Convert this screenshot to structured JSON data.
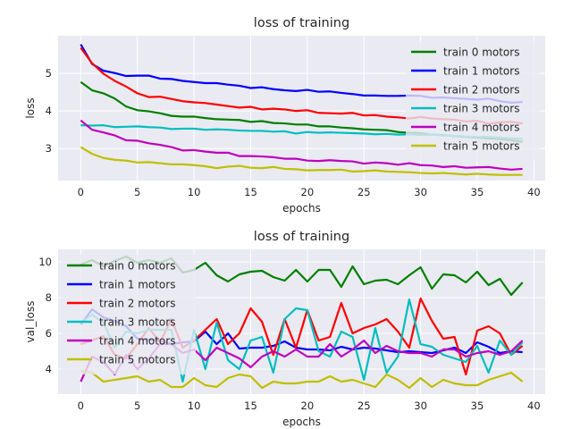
{
  "colors": {
    "panel_bg": "#eaeaf2",
    "grid": "#ffffff",
    "text": "#262626",
    "series": [
      "#008000",
      "#0000ff",
      "#ff0000",
      "#00bfbf",
      "#bf00bf",
      "#bfbf00"
    ]
  },
  "chart_data": [
    {
      "type": "line",
      "title": "loss of training",
      "xlabel": "epochs",
      "ylabel": "loss",
      "xlim": [
        -2,
        41
      ],
      "ylim": [
        2.15,
        6.0
      ],
      "xticks": [
        0,
        5,
        10,
        15,
        20,
        25,
        30,
        35,
        40
      ],
      "yticks": [
        3,
        4,
        5
      ],
      "grid": true,
      "legend_position": "upper right",
      "x": [
        0,
        1,
        2,
        3,
        4,
        5,
        6,
        7,
        8,
        9,
        10,
        11,
        12,
        13,
        14,
        15,
        16,
        17,
        18,
        19,
        20,
        21,
        22,
        23,
        24,
        25,
        26,
        27,
        28,
        29,
        30,
        31,
        32,
        33,
        34,
        35,
        36,
        37,
        38,
        39
      ],
      "series": [
        {
          "name": "train 0 motors",
          "values": [
            4.77,
            4.55,
            4.47,
            4.33,
            4.12,
            4.02,
            3.99,
            3.94,
            3.87,
            3.85,
            3.85,
            3.81,
            3.78,
            3.77,
            3.76,
            3.71,
            3.73,
            3.68,
            3.67,
            3.64,
            3.64,
            3.59,
            3.59,
            3.56,
            3.54,
            3.51,
            3.5,
            3.49,
            3.44,
            3.42,
            3.41,
            3.37,
            3.36,
            3.33,
            3.31,
            3.29,
            3.27,
            3.25,
            3.22,
            3.18
          ]
        },
        {
          "name": "train 1 motors",
          "values": [
            5.77,
            5.25,
            5.07,
            5.01,
            4.93,
            4.94,
            4.94,
            4.86,
            4.85,
            4.8,
            4.77,
            4.74,
            4.74,
            4.7,
            4.67,
            4.61,
            4.63,
            4.58,
            4.55,
            4.53,
            4.56,
            4.51,
            4.52,
            4.48,
            4.45,
            4.41,
            4.41,
            4.4,
            4.4,
            4.41,
            4.4,
            4.35,
            4.36,
            4.34,
            4.32,
            4.3,
            4.33,
            4.26,
            4.22,
            4.24
          ]
        },
        {
          "name": "train 2 motors",
          "values": [
            5.68,
            5.27,
            4.99,
            4.8,
            4.65,
            4.47,
            4.37,
            4.38,
            4.32,
            4.26,
            4.23,
            4.21,
            4.17,
            4.13,
            4.09,
            4.11,
            4.04,
            4.06,
            4.04,
            4.0,
            4.02,
            3.95,
            3.94,
            3.93,
            3.95,
            3.88,
            3.89,
            3.85,
            3.83,
            3.8,
            3.84,
            3.8,
            3.78,
            3.77,
            3.72,
            3.74,
            3.66,
            3.7,
            3.71,
            3.67
          ]
        },
        {
          "name": "train 3 motors",
          "values": [
            3.62,
            3.61,
            3.62,
            3.57,
            3.58,
            3.59,
            3.57,
            3.56,
            3.52,
            3.53,
            3.53,
            3.5,
            3.51,
            3.5,
            3.48,
            3.47,
            3.47,
            3.45,
            3.46,
            3.4,
            3.44,
            3.42,
            3.43,
            3.42,
            3.41,
            3.4,
            3.38,
            3.39,
            3.37,
            3.38,
            3.36,
            3.37,
            3.35,
            3.34,
            3.32,
            3.31,
            3.31,
            3.29,
            3.27,
            3.26
          ]
        },
        {
          "name": "train 4 motors",
          "values": [
            3.75,
            3.5,
            3.43,
            3.35,
            3.22,
            3.21,
            3.14,
            3.1,
            3.04,
            2.95,
            2.96,
            2.92,
            2.89,
            2.89,
            2.8,
            2.8,
            2.79,
            2.77,
            2.73,
            2.73,
            2.68,
            2.67,
            2.69,
            2.67,
            2.66,
            2.6,
            2.63,
            2.61,
            2.57,
            2.61,
            2.56,
            2.55,
            2.51,
            2.53,
            2.49,
            2.5,
            2.51,
            2.47,
            2.44,
            2.46
          ]
        },
        {
          "name": "train 5 motors",
          "values": [
            3.04,
            2.86,
            2.75,
            2.7,
            2.68,
            2.63,
            2.64,
            2.61,
            2.58,
            2.58,
            2.56,
            2.53,
            2.48,
            2.52,
            2.54,
            2.49,
            2.48,
            2.51,
            2.46,
            2.45,
            2.42,
            2.43,
            2.43,
            2.44,
            2.39,
            2.4,
            2.42,
            2.39,
            2.38,
            2.37,
            2.35,
            2.34,
            2.35,
            2.33,
            2.31,
            2.33,
            2.31,
            2.3,
            2.3,
            2.3
          ]
        }
      ]
    },
    {
      "type": "line",
      "title": "loss of training",
      "xlabel": "epochs",
      "ylabel": "val_loss",
      "xlim": [
        -2,
        41
      ],
      "ylim": [
        2.6,
        10.7
      ],
      "xticks": [
        0,
        5,
        10,
        15,
        20,
        25,
        30,
        35,
        40
      ],
      "yticks": [
        4,
        6,
        8,
        10
      ],
      "grid": true,
      "legend_position": "upper left",
      "x": [
        0,
        1,
        2,
        3,
        4,
        5,
        6,
        7,
        8,
        9,
        10,
        11,
        12,
        13,
        14,
        15,
        16,
        17,
        18,
        19,
        20,
        21,
        22,
        23,
        24,
        25,
        26,
        27,
        28,
        29,
        30,
        31,
        32,
        33,
        34,
        35,
        36,
        37,
        38,
        39
      ],
      "series": [
        {
          "name": "train 0 motors",
          "values": [
            9.85,
            10.1,
            9.75,
            10.05,
            10.3,
            9.95,
            10.1,
            9.95,
            10.2,
            9.4,
            9.55,
            9.95,
            9.25,
            8.9,
            9.3,
            9.45,
            9.5,
            9.15,
            8.95,
            9.55,
            8.9,
            9.55,
            9.55,
            8.6,
            9.75,
            8.75,
            8.95,
            9.0,
            8.75,
            9.25,
            9.7,
            8.5,
            9.3,
            9.25,
            8.85,
            9.45,
            8.7,
            9.05,
            8.15,
            8.85
          ]
        },
        {
          "name": "train 1 motors",
          "values": [
            6.5,
            7.35,
            6.9,
            6.7,
            6.4,
            5.7,
            5.65,
            5.6,
            5.4,
            5.5,
            5.55,
            6.1,
            5.4,
            6.0,
            5.15,
            5.2,
            5.2,
            5.3,
            5.55,
            5.2,
            5.1,
            5.1,
            5.05,
            5.25,
            5.1,
            5.2,
            5.15,
            5.05,
            4.95,
            5.0,
            4.95,
            4.9,
            5.05,
            5.2,
            4.9,
            5.5,
            5.25,
            4.9,
            5.0,
            4.95
          ]
        },
        {
          "name": "train 2 motors",
          "values": [
            5.4,
            5.6,
            5.85,
            4.8,
            4.6,
            5.4,
            6.3,
            5.5,
            6.8,
            5.2,
            5.6,
            6.2,
            6.8,
            5.4,
            6.0,
            7.4,
            6.65,
            4.8,
            6.8,
            5.2,
            7.3,
            5.6,
            5.8,
            7.7,
            6.0,
            6.3,
            6.5,
            6.8,
            6.1,
            5.2,
            7.95,
            6.7,
            5.7,
            5.8,
            3.7,
            6.15,
            6.4,
            6.0,
            4.8,
            5.3
          ]
        },
        {
          "name": "train 3 motors",
          "values": [
            6.6,
            7.05,
            6.6,
            5.2,
            6.1,
            6.0,
            6.2,
            6.2,
            6.2,
            3.3,
            6.2,
            4.0,
            6.6,
            4.5,
            4.0,
            5.6,
            5.8,
            3.8,
            6.8,
            7.4,
            7.3,
            5.0,
            4.7,
            6.1,
            5.8,
            3.4,
            6.3,
            3.8,
            4.7,
            7.9,
            5.4,
            5.25,
            4.8,
            4.6,
            4.4,
            5.3,
            3.8,
            5.6,
            4.8,
            5.5
          ]
        },
        {
          "name": "train 4 motors",
          "values": [
            3.3,
            4.7,
            4.4,
            3.7,
            4.8,
            4.0,
            4.6,
            5.4,
            5.4,
            4.9,
            5.1,
            4.5,
            5.2,
            4.9,
            4.6,
            4.1,
            4.7,
            5.0,
            4.7,
            5.1,
            4.7,
            4.7,
            5.4,
            4.7,
            5.1,
            5.6,
            4.9,
            5.3,
            5.0,
            4.9,
            4.9,
            4.7,
            5.1,
            5.1,
            4.7,
            4.9,
            5.0,
            4.8,
            5.0,
            5.6
          ]
        },
        {
          "name": "train 5 motors",
          "values": [
            3.9,
            3.8,
            3.3,
            3.4,
            3.5,
            3.6,
            3.3,
            3.4,
            3.0,
            3.0,
            3.5,
            3.1,
            3.0,
            3.5,
            3.7,
            3.6,
            2.95,
            3.3,
            3.2,
            3.2,
            3.3,
            3.3,
            3.6,
            3.3,
            3.4,
            3.2,
            3.0,
            3.7,
            3.4,
            2.95,
            3.5,
            3.0,
            3.4,
            3.2,
            3.1,
            3.1,
            3.4,
            3.6,
            3.8,
            3.3
          ]
        }
      ]
    }
  ]
}
